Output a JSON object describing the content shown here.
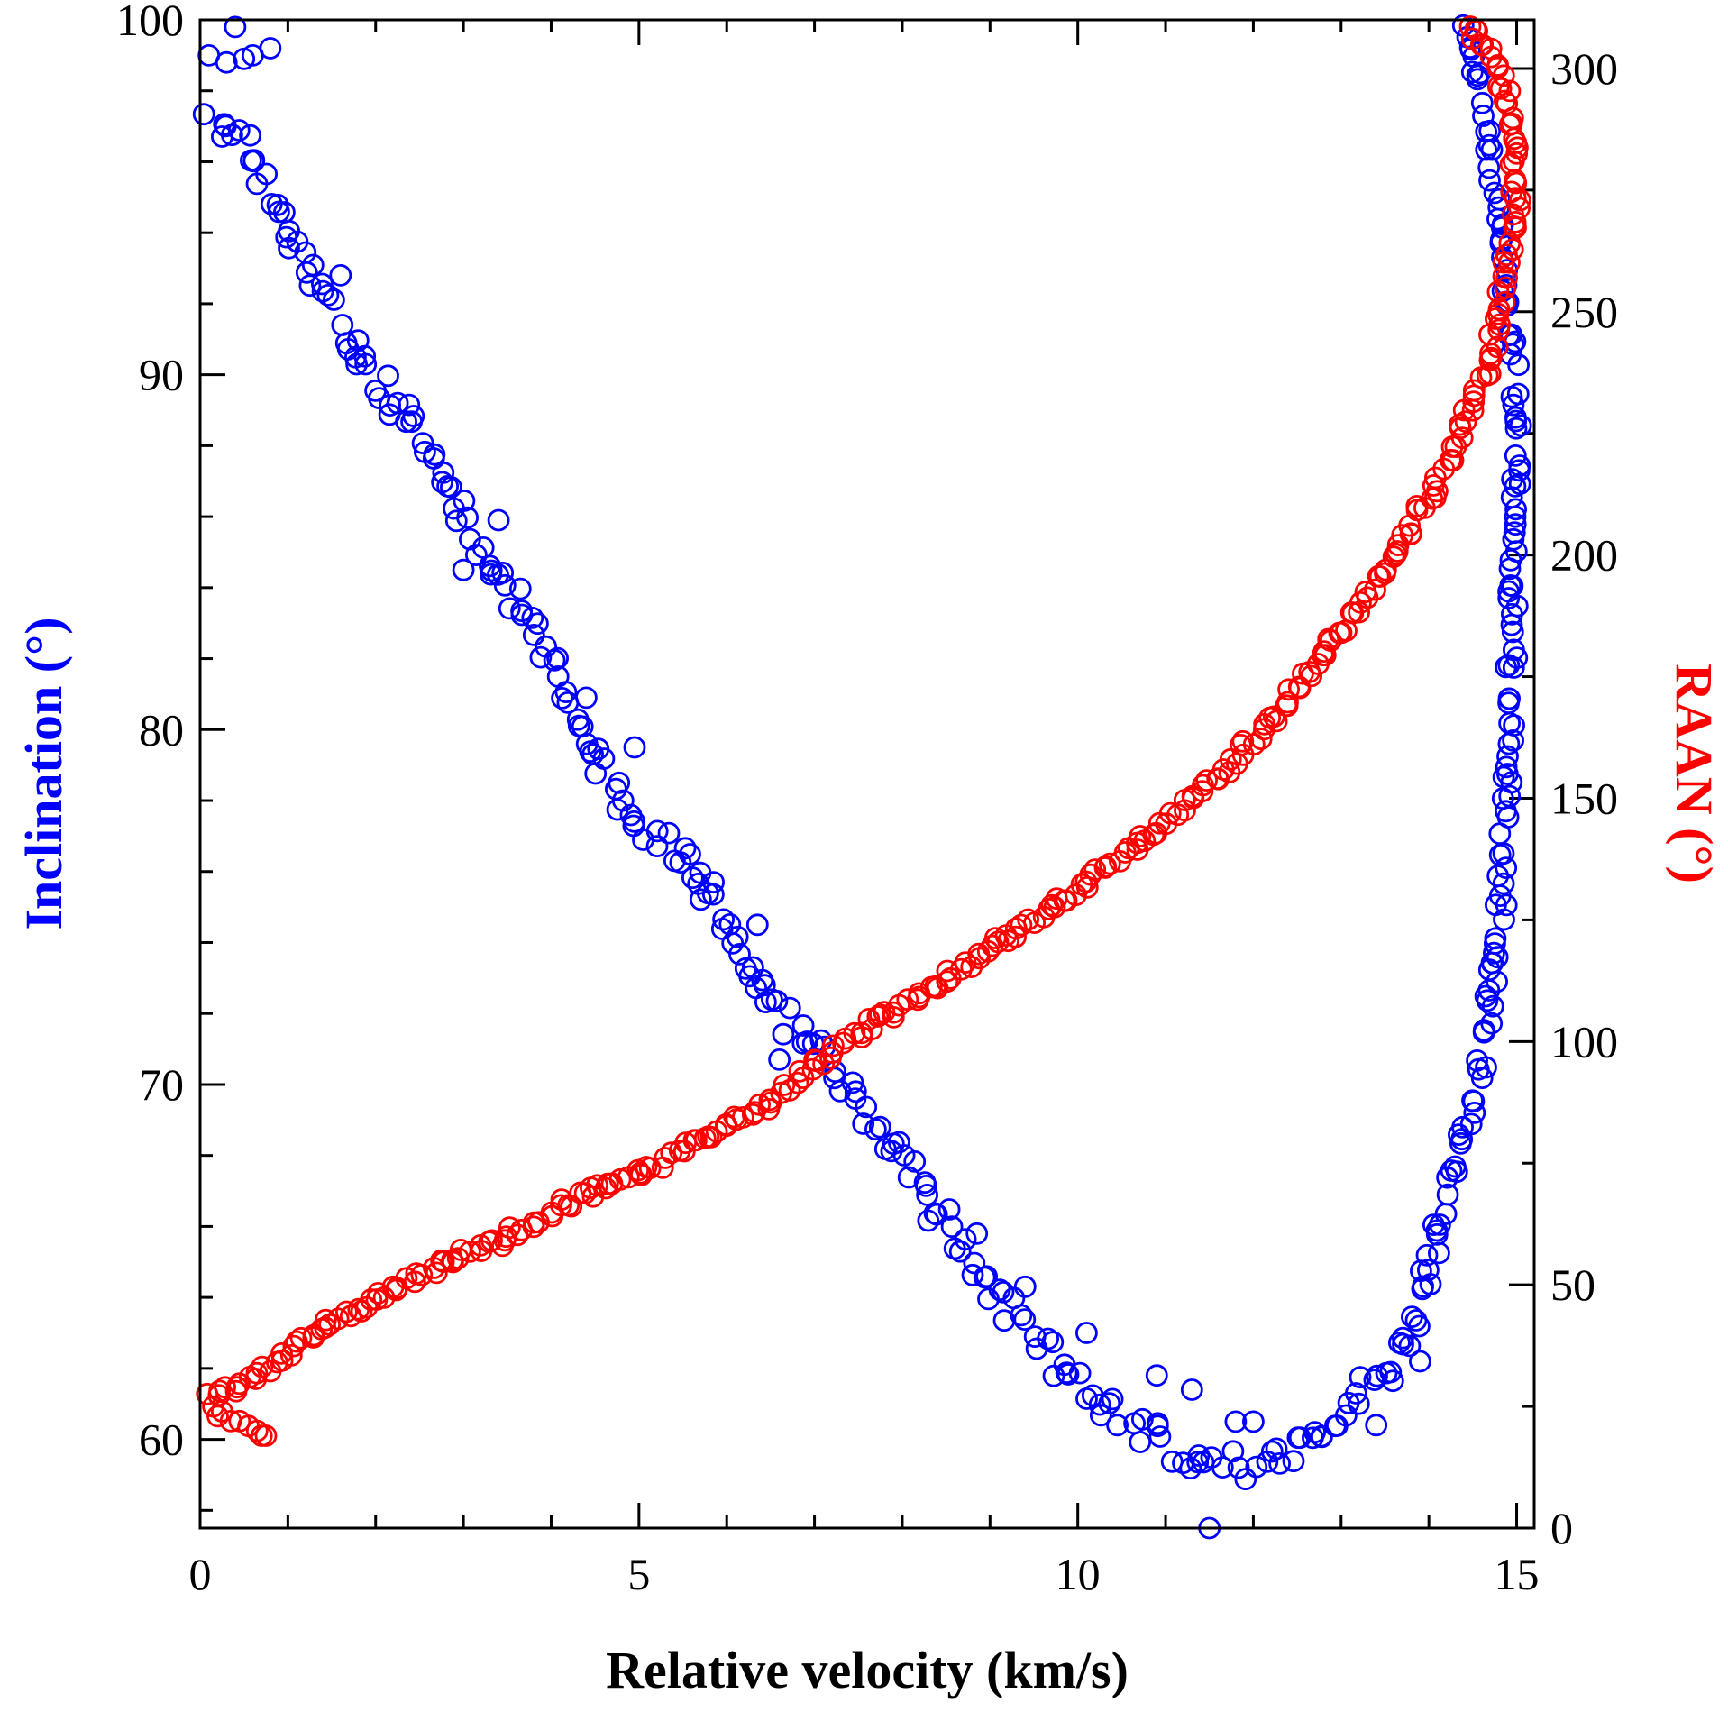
{
  "chart_data": {
    "type": "scatter",
    "title": "",
    "xlabel": "Relative velocity (km/s)",
    "ylabel_left": "Inclination (°)",
    "ylabel_right": "RAAN (°)",
    "xlim": [
      0,
      15.2
    ],
    "ylim_left": [
      57.5,
      100
    ],
    "ylim_right": [
      0,
      310
    ],
    "x_ticks": [
      0,
      5,
      10,
      15
    ],
    "y_left_ticks": [
      60,
      70,
      80,
      90,
      100
    ],
    "y_right_ticks": [
      0,
      50,
      100,
      150,
      200,
      250,
      300
    ],
    "colors": {
      "inclination": "#0000ff",
      "raan": "#ff0000",
      "axis": "#000000"
    },
    "series": [
      {
        "name": "Inclination",
        "axis": "left",
        "color": "#0000ff",
        "marker": "open-circle",
        "anchors": [
          [
            0.1,
            97.3
          ],
          [
            0.3,
            96.9
          ],
          [
            0.6,
            96.0
          ],
          [
            1.0,
            93.8
          ],
          [
            1.5,
            91.8
          ],
          [
            2.0,
            89.8
          ],
          [
            2.5,
            88.2
          ],
          [
            3.0,
            86.2
          ],
          [
            3.5,
            84.0
          ],
          [
            4.0,
            81.8
          ],
          [
            4.5,
            79.3
          ],
          [
            5.0,
            77.3
          ],
          [
            5.5,
            76.5
          ],
          [
            6.0,
            74.2
          ],
          [
            6.5,
            72.3
          ],
          [
            7.0,
            71.2
          ],
          [
            7.5,
            69.5
          ],
          [
            8.0,
            68.0
          ],
          [
            8.5,
            66.0
          ],
          [
            9.0,
            64.3
          ],
          [
            9.5,
            63.0
          ],
          [
            10.0,
            61.5
          ],
          [
            10.5,
            60.6
          ],
          [
            11.0,
            59.9
          ],
          [
            11.5,
            59.2
          ],
          [
            12.0,
            59.3
          ],
          [
            12.5,
            59.8
          ],
          [
            13.0,
            60.8
          ],
          [
            13.5,
            61.8
          ],
          [
            13.8,
            63.2
          ],
          [
            14.0,
            64.8
          ],
          [
            14.2,
            66.8
          ],
          [
            14.4,
            68.7
          ],
          [
            14.6,
            70.5
          ],
          [
            14.7,
            72.2
          ],
          [
            14.8,
            74.5
          ],
          [
            14.9,
            78.5
          ],
          [
            14.95,
            82.5
          ],
          [
            15.0,
            86.0
          ],
          [
            15.0,
            89.5
          ],
          [
            14.9,
            92.0
          ],
          [
            14.8,
            94.5
          ],
          [
            14.7,
            96.0
          ],
          [
            14.6,
            97.8
          ],
          [
            14.5,
            99.2
          ],
          [
            14.4,
            100.3
          ]
        ],
        "noise": 0.5,
        "count": 380,
        "extra_points": [
          [
            0.1,
            99.0
          ],
          [
            0.3,
            98.8
          ],
          [
            0.4,
            99.8
          ],
          [
            0.5,
            98.9
          ],
          [
            0.6,
            99.0
          ],
          [
            0.8,
            99.2
          ],
          [
            11.5,
            57.5
          ],
          [
            8.85,
            65.8
          ],
          [
            10.1,
            63.0
          ],
          [
            11.3,
            61.4
          ],
          [
            10.9,
            61.8
          ],
          [
            6.6,
            70.7
          ],
          [
            6.3,
            73.3
          ],
          [
            6.35,
            74.5
          ],
          [
            5.85,
            75.7
          ],
          [
            4.95,
            79.5
          ],
          [
            3.4,
            85.9
          ],
          [
            2.25,
            89.2
          ],
          [
            1.6,
            92.8
          ],
          [
            3.0,
            84.5
          ],
          [
            4.4,
            80.9
          ],
          [
            9.4,
            64.3
          ],
          [
            12.0,
            60.5
          ],
          [
            13.2,
            61.0
          ],
          [
            13.4,
            60.4
          ],
          [
            13.9,
            62.2
          ],
          [
            12.7,
            60.2
          ],
          [
            11.8,
            60.5
          ]
        ]
      },
      {
        "name": "RAAN",
        "axis": "right",
        "color": "#ff0000",
        "marker": "open-circle",
        "anchors": [
          [
            0.1,
            27
          ],
          [
            0.5,
            30
          ],
          [
            1.0,
            36
          ],
          [
            1.5,
            42
          ],
          [
            2.0,
            47
          ],
          [
            2.5,
            52
          ],
          [
            3.0,
            56
          ],
          [
            3.5,
            60
          ],
          [
            4.0,
            65
          ],
          [
            4.5,
            70
          ],
          [
            5.0,
            73
          ],
          [
            5.5,
            78
          ],
          [
            5.8,
            81
          ],
          [
            6.2,
            85
          ],
          [
            6.6,
            89
          ],
          [
            7.0,
            95
          ],
          [
            7.5,
            102
          ],
          [
            8.0,
            107
          ],
          [
            8.5,
            113
          ],
          [
            9.0,
            119
          ],
          [
            9.5,
            125
          ],
          [
            10.0,
            131
          ],
          [
            10.5,
            138
          ],
          [
            11.0,
            145
          ],
          [
            11.5,
            153
          ],
          [
            12.0,
            162
          ],
          [
            12.5,
            172
          ],
          [
            13.0,
            184
          ],
          [
            13.5,
            197
          ],
          [
            14.0,
            212
          ],
          [
            14.3,
            222
          ],
          [
            14.5,
            232
          ],
          [
            14.7,
            240
          ],
          [
            14.8,
            250
          ],
          [
            14.9,
            262
          ],
          [
            15.0,
            275
          ],
          [
            14.95,
            290
          ],
          [
            14.8,
            300
          ],
          [
            14.6,
            306
          ],
          [
            14.4,
            310
          ]
        ],
        "noise": 1.2,
        "count": 330,
        "extra_points": [
          [
            0.2,
            23
          ],
          [
            0.35,
            22
          ],
          [
            0.45,
            22
          ],
          [
            0.55,
            21
          ],
          [
            0.65,
            20
          ],
          [
            0.7,
            19
          ],
          [
            0.75,
            19
          ],
          [
            0.25,
            24
          ],
          [
            0.15,
            25
          ]
        ]
      }
    ]
  }
}
